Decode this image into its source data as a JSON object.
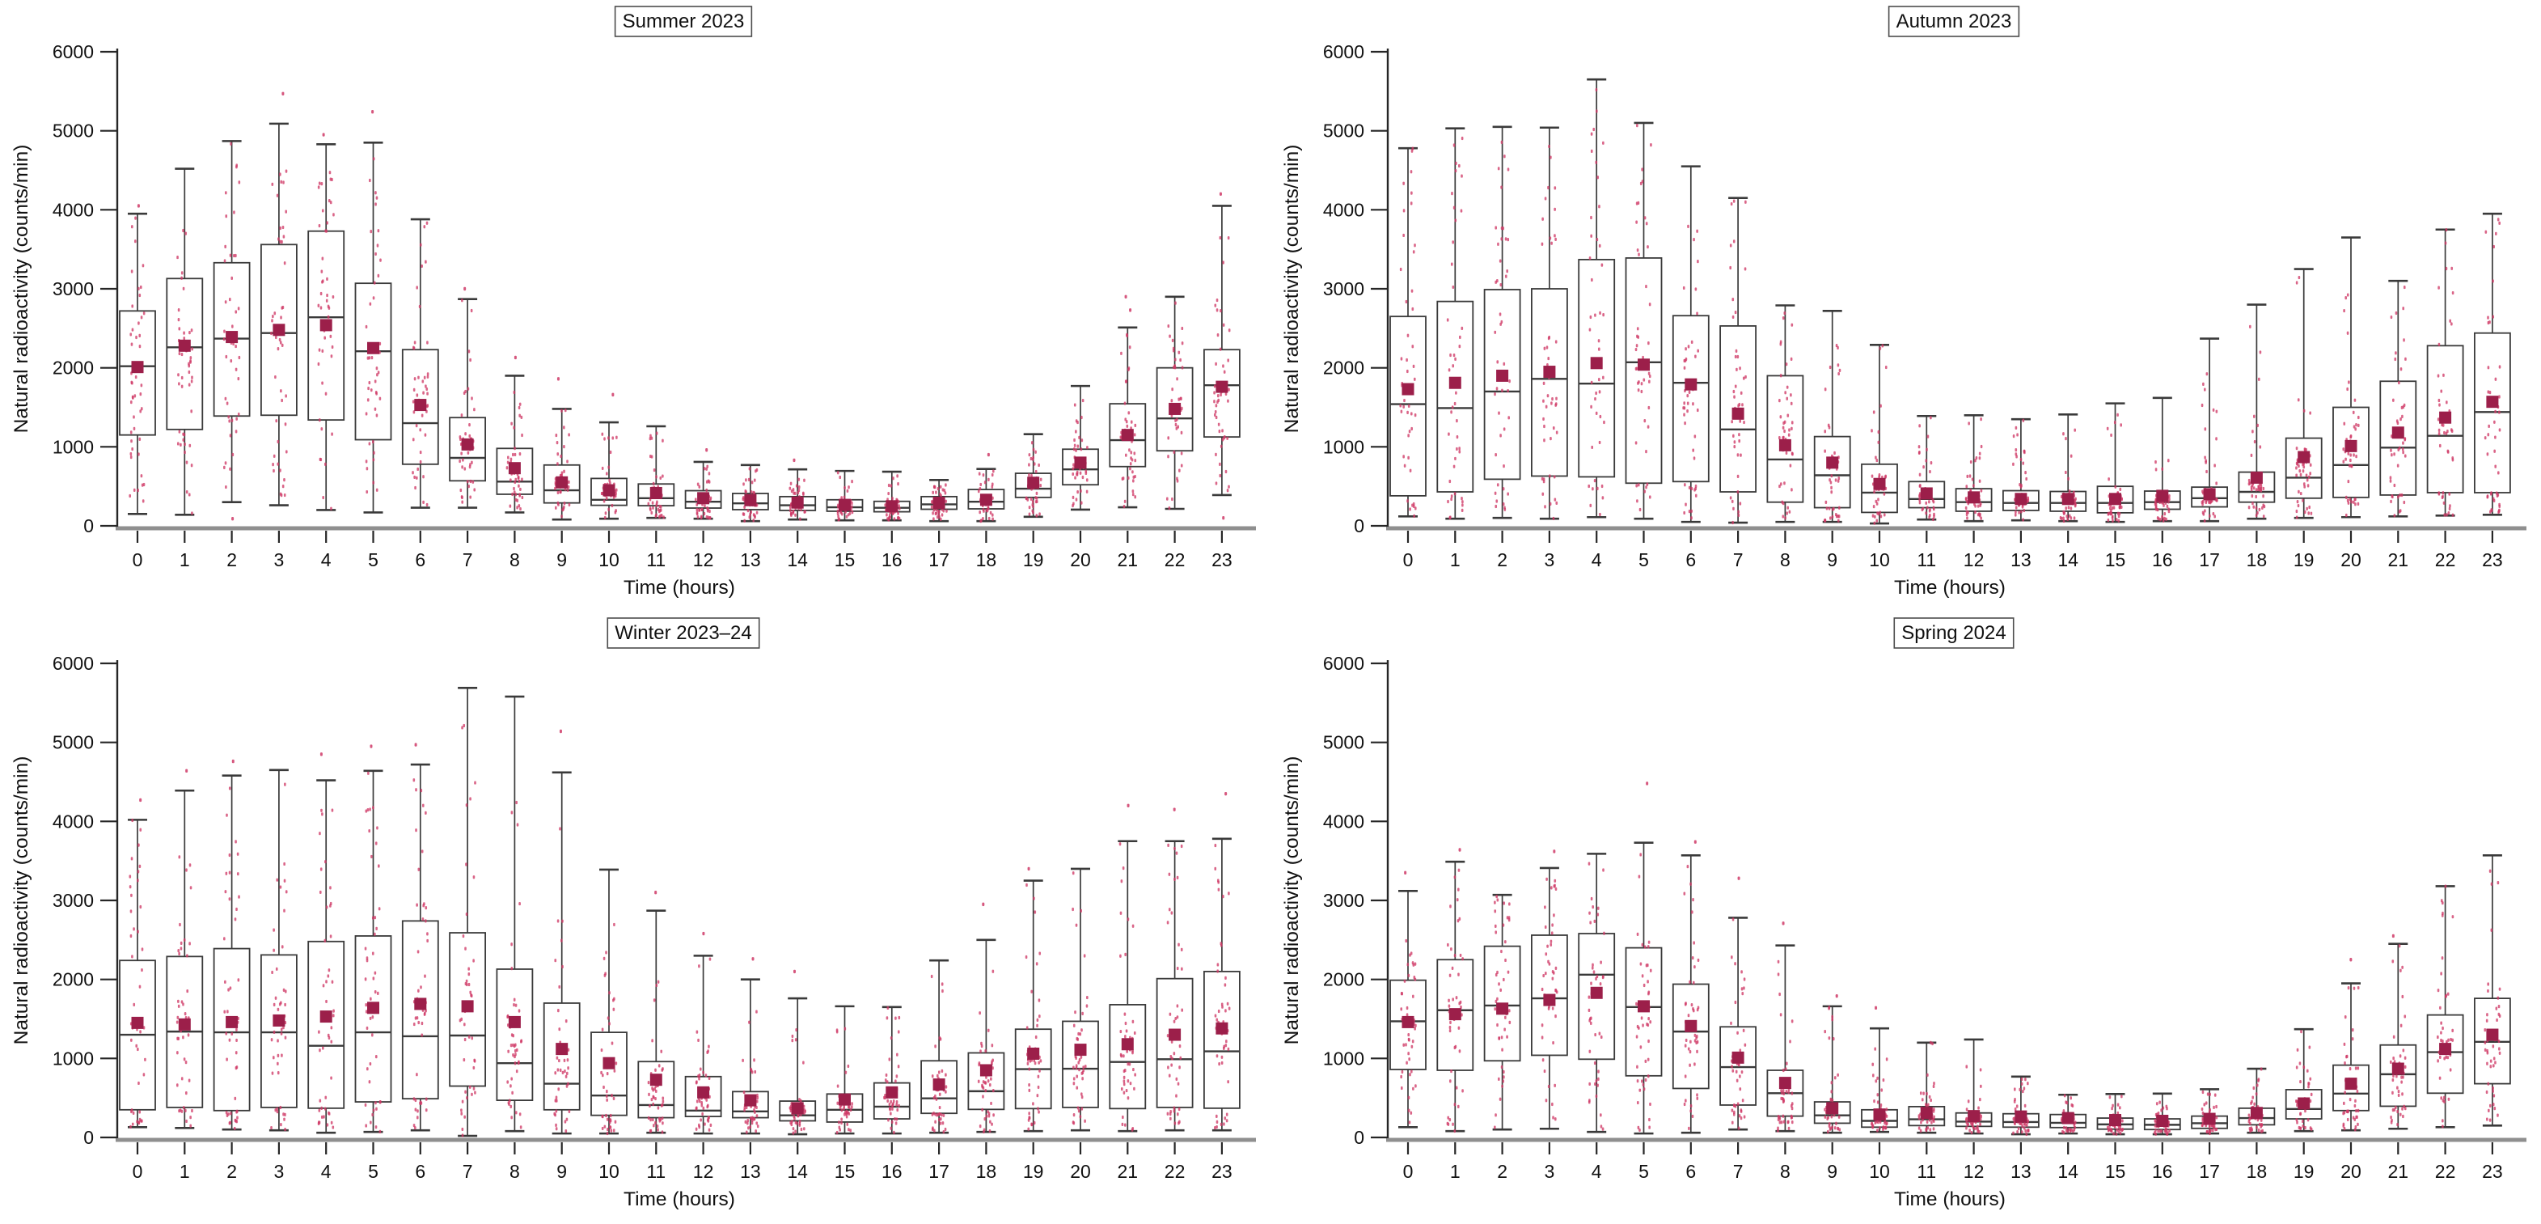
{
  "figure_title": "Seasonal diurnal variation of natural radioactivity",
  "style": {
    "point_color": "#cf3a67",
    "mean_color": "#9c1f4a",
    "line_color": "#3a3a3a",
    "axis_color": "#8f8f8f",
    "text_color": "#111111",
    "title_border": "#4c4c4c"
  },
  "chart_data": [
    {
      "type": "box",
      "title": "Summer 2023",
      "xlabel": "Time (hours)",
      "ylabel": "Natural radioactivity (counts/min)",
      "ylim": [
        0,
        6000
      ],
      "yticks": [
        0,
        1000,
        2000,
        3000,
        4000,
        5000,
        6000
      ],
      "x": [
        0,
        1,
        2,
        3,
        4,
        5,
        6,
        7,
        8,
        9,
        10,
        11,
        12,
        13,
        14,
        15,
        16,
        17,
        18,
        19,
        20,
        21,
        22,
        23
      ],
      "whislo": [
        150,
        140,
        300,
        260,
        200,
        170,
        230,
        230,
        170,
        80,
        90,
        100,
        90,
        60,
        80,
        70,
        70,
        60,
        60,
        115,
        205,
        235,
        215,
        390
      ],
      "q1": [
        1150,
        1220,
        1390,
        1400,
        1340,
        1090,
        780,
        570,
        400,
        290,
        260,
        255,
        225,
        205,
        195,
        185,
        178,
        210,
        215,
        360,
        520,
        750,
        950,
        1125
      ],
      "med": [
        2020,
        2260,
        2370,
        2440,
        2640,
        2210,
        1300,
        860,
        560,
        450,
        330,
        350,
        305,
        285,
        260,
        235,
        228,
        272,
        305,
        470,
        715,
        1085,
        1360,
        1780
      ],
      "q3": [
        2720,
        3130,
        3330,
        3560,
        3730,
        3070,
        2230,
        1370,
        980,
        770,
        600,
        530,
        445,
        410,
        370,
        330,
        310,
        370,
        460,
        665,
        970,
        1545,
        2000,
        2230
      ],
      "whishi": [
        3950,
        4520,
        4870,
        5090,
        4830,
        4850,
        3880,
        2870,
        1900,
        1480,
        1310,
        1260,
        810,
        770,
        715,
        695,
        685,
        580,
        720,
        1160,
        1770,
        2510,
        2900,
        4050
      ],
      "mean": [
        2010,
        2280,
        2390,
        2480,
        2540,
        2250,
        1530,
        1030,
        730,
        550,
        450,
        415,
        350,
        325,
        295,
        265,
        248,
        292,
        330,
        545,
        800,
        1150,
        1480,
        1760
      ],
      "outliers": [
        [
          4050
        ],
        [],
        [
          90
        ],
        [
          5470
        ],
        [
          4950
        ],
        [
          5240
        ],
        [],
        [
          3000
        ],
        [
          2130
        ],
        [
          1860
        ],
        [
          1660
        ],
        [],
        [
          960
        ],
        [],
        [
          830
        ],
        [],
        [],
        [],
        [
          900
        ],
        [],
        [],
        [
          2730,
          2900
        ],
        [],
        [
          4200,
          100
        ]
      ]
    },
    {
      "type": "box",
      "title": "Autumn 2023",
      "xlabel": "Time (hours)",
      "ylabel": "Natural radioactivity (counts/min)",
      "ylim": [
        0,
        6000
      ],
      "yticks": [
        0,
        1000,
        2000,
        3000,
        4000,
        5000,
        6000
      ],
      "x": [
        0,
        1,
        2,
        3,
        4,
        5,
        6,
        7,
        8,
        9,
        10,
        11,
        12,
        13,
        14,
        15,
        16,
        17,
        18,
        19,
        20,
        21,
        22,
        23
      ],
      "whislo": [
        120,
        90,
        100,
        90,
        110,
        90,
        50,
        40,
        50,
        50,
        30,
        80,
        60,
        70,
        60,
        50,
        60,
        60,
        90,
        100,
        110,
        120,
        130,
        140
      ],
      "q1": [
        380,
        430,
        590,
        630,
        620,
        540,
        560,
        430,
        300,
        230,
        170,
        230,
        185,
        195,
        185,
        165,
        210,
        240,
        300,
        350,
        360,
        390,
        420,
        420
      ],
      "med": [
        1540,
        1490,
        1700,
        1860,
        1800,
        2070,
        1810,
        1220,
        840,
        640,
        420,
        340,
        300,
        290,
        290,
        290,
        300,
        350,
        430,
        610,
        770,
        990,
        1140,
        1440
      ],
      "q3": [
        2650,
        2840,
        2990,
        3000,
        3370,
        3390,
        2660,
        2530,
        1900,
        1130,
        780,
        560,
        470,
        445,
        435,
        500,
        440,
        490,
        680,
        1110,
        1500,
        1830,
        2280,
        2440
      ],
      "whishi": [
        4780,
        5030,
        5050,
        5040,
        5650,
        5100,
        4550,
        4150,
        2790,
        2720,
        2290,
        1390,
        1400,
        1350,
        1410,
        1550,
        1620,
        2370,
        2800,
        3250,
        3650,
        3100,
        3750,
        3950
      ],
      "mean": [
        1730,
        1810,
        1900,
        1950,
        2060,
        2040,
        1790,
        1420,
        1020,
        800,
        530,
        410,
        360,
        340,
        340,
        340,
        380,
        400,
        610,
        870,
        1010,
        1180,
        1370,
        1570
      ],
      "outliers": [
        [],
        [],
        [],
        [],
        [],
        [],
        [],
        [],
        [],
        [],
        [],
        [],
        [],
        [],
        [],
        [],
        [],
        [],
        [],
        [],
        [],
        [],
        [],
        []
      ]
    },
    {
      "type": "box",
      "title": "Winter 2023–24",
      "xlabel": "Time (hours)",
      "ylabel": "Natural radioactivity (counts/min)",
      "ylim": [
        0,
        6000
      ],
      "yticks": [
        0,
        1000,
        2000,
        3000,
        4000,
        5000,
        6000
      ],
      "x": [
        0,
        1,
        2,
        3,
        4,
        5,
        6,
        7,
        8,
        9,
        10,
        11,
        12,
        13,
        14,
        15,
        16,
        17,
        18,
        19,
        20,
        21,
        22,
        23
      ],
      "whislo": [
        130,
        120,
        100,
        90,
        60,
        70,
        90,
        20,
        80,
        50,
        50,
        60,
        50,
        50,
        40,
        50,
        50,
        60,
        70,
        80,
        90,
        80,
        90,
        90
      ],
      "q1": [
        350,
        380,
        340,
        380,
        370,
        450,
        490,
        650,
        470,
        350,
        280,
        250,
        265,
        250,
        210,
        195,
        235,
        305,
        355,
        365,
        380,
        365,
        380,
        370
      ],
      "med": [
        1300,
        1340,
        1330,
        1330,
        1160,
        1330,
        1280,
        1290,
        940,
        680,
        530,
        410,
        340,
        330,
        280,
        350,
        390,
        495,
        585,
        865,
        870,
        955,
        990,
        1090
      ],
      "q3": [
        2240,
        2290,
        2390,
        2310,
        2480,
        2550,
        2740,
        2590,
        2130,
        1700,
        1330,
        960,
        770,
        580,
        460,
        550,
        690,
        970,
        1070,
        1370,
        1470,
        1680,
        2010,
        2100
      ],
      "whishi": [
        4020,
        4390,
        4580,
        4650,
        4520,
        4640,
        4720,
        5690,
        5580,
        4620,
        3390,
        2870,
        2300,
        2000,
        1760,
        1660,
        1650,
        2240,
        2500,
        3250,
        3400,
        3750,
        3750,
        3780
      ],
      "mean": [
        1450,
        1430,
        1460,
        1480,
        1530,
        1640,
        1690,
        1660,
        1460,
        1120,
        940,
        730,
        570,
        470,
        370,
        480,
        570,
        670,
        850,
        1060,
        1110,
        1180,
        1300,
        1380
      ],
      "outliers": [
        [
          4270
        ],
        [
          4640
        ],
        [
          4760
        ],
        [],
        [
          4850
        ],
        [
          4950
        ],
        [
          4970
        ],
        [],
        [],
        [
          5140
        ],
        [],
        [
          3100
        ],
        [
          2580
        ],
        [
          2260
        ],
        [
          2100
        ],
        [],
        [],
        [],
        [
          2950
        ],
        [
          3400
        ],
        [],
        [
          4200
        ],
        [
          4150
        ],
        [
          4350
        ]
      ]
    },
    {
      "type": "box",
      "title": "Spring 2024",
      "xlabel": "Time (hours)",
      "ylabel": "Natural radioactivity (counts/min)",
      "ylim": [
        0,
        6000
      ],
      "yticks": [
        0,
        1000,
        2000,
        3000,
        4000,
        5000,
        6000
      ],
      "x": [
        0,
        1,
        2,
        3,
        4,
        5,
        6,
        7,
        8,
        9,
        10,
        11,
        12,
        13,
        14,
        15,
        16,
        17,
        18,
        19,
        20,
        21,
        22,
        23
      ],
      "whislo": [
        130,
        80,
        100,
        110,
        70,
        50,
        60,
        100,
        80,
        60,
        70,
        60,
        50,
        40,
        50,
        40,
        40,
        50,
        60,
        80,
        90,
        110,
        130,
        150
      ],
      "q1": [
        860,
        850,
        970,
        1040,
        990,
        780,
        620,
        410,
        270,
        180,
        130,
        150,
        140,
        130,
        125,
        105,
        100,
        115,
        160,
        235,
        340,
        395,
        560,
        680
      ],
      "med": [
        1470,
        1610,
        1670,
        1760,
        2060,
        1650,
        1340,
        890,
        560,
        280,
        210,
        230,
        200,
        195,
        185,
        165,
        160,
        180,
        245,
        360,
        555,
        800,
        1080,
        1210
      ],
      "q3": [
        1990,
        2250,
        2420,
        2560,
        2580,
        2400,
        1940,
        1400,
        850,
        450,
        350,
        390,
        310,
        300,
        290,
        245,
        235,
        270,
        370,
        605,
        915,
        1170,
        1550,
        1760
      ],
      "whishi": [
        3120,
        3490,
        3070,
        3410,
        3590,
        3730,
        3570,
        2780,
        2430,
        1660,
        1380,
        1200,
        1240,
        770,
        540,
        550,
        555,
        610,
        870,
        1370,
        1950,
        2450,
        3180,
        3570
      ],
      "mean": [
        1460,
        1560,
        1630,
        1740,
        1830,
        1660,
        1410,
        1010,
        690,
        370,
        290,
        310,
        270,
        265,
        245,
        220,
        210,
        235,
        310,
        430,
        680,
        870,
        1120,
        1300
      ],
      "outliers": [
        [
          3350
        ],
        [
          3640
        ],
        [],
        [
          3620
        ],
        [],
        [
          4480
        ],
        [
          3740
        ],
        [
          3280
        ],
        [
          2710
        ],
        [
          1790
        ],
        [
          1640
        ],
        [],
        [],
        [],
        [],
        [],
        [],
        [],
        [],
        [],
        [
          2250
        ],
        [
          2550
        ],
        [],
        []
      ]
    }
  ]
}
